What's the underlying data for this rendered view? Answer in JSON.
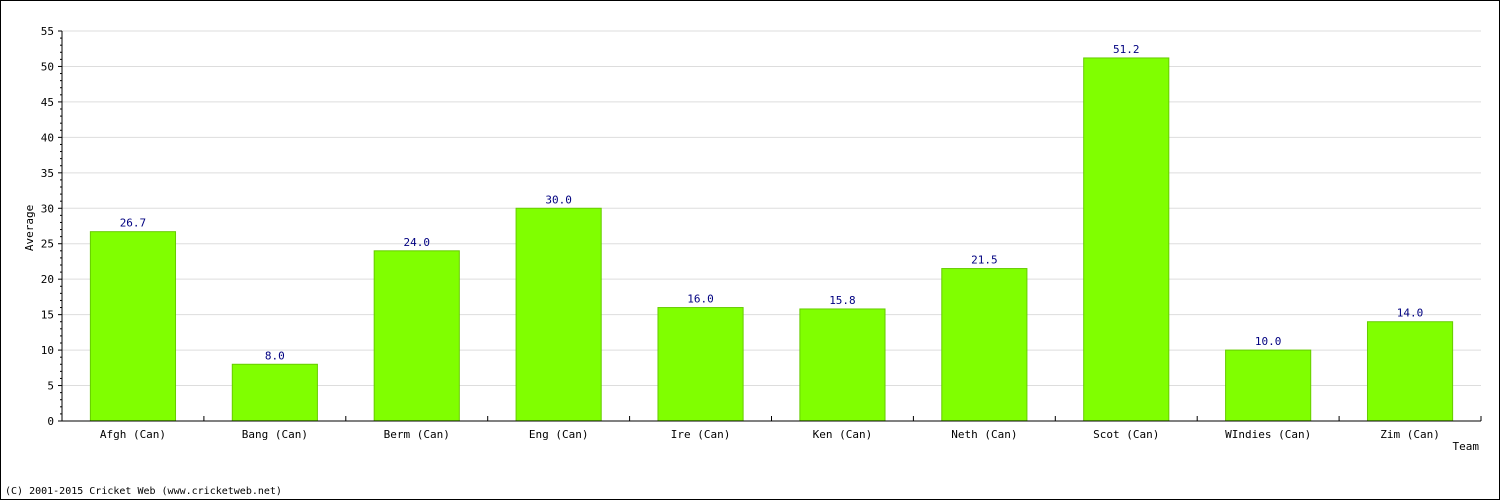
{
  "chart_data": {
    "type": "bar",
    "categories": [
      "Afgh (Can)",
      "Bang (Can)",
      "Berm (Can)",
      "Eng (Can)",
      "Ire (Can)",
      "Ken (Can)",
      "Neth (Can)",
      "Scot (Can)",
      "WIndies (Can)",
      "Zim (Can)"
    ],
    "values": [
      26.7,
      8.0,
      24.0,
      30.0,
      16.0,
      15.8,
      21.5,
      51.2,
      10.0,
      14.0
    ],
    "value_labels": [
      "26.7",
      "8.0",
      "24.0",
      "30.0",
      "16.0",
      "15.8",
      "21.5",
      "51.2",
      "10.0",
      "14.0"
    ],
    "xlabel": "Team",
    "ylabel": "Average",
    "ylim": [
      0,
      55
    ],
    "yticks": [
      0,
      5,
      10,
      15,
      20,
      25,
      30,
      35,
      40,
      45,
      50,
      55
    ],
    "grid": true,
    "colors": {
      "bar": "#80ff00",
      "bar_edge": "#66cc00",
      "value_label": "#000080",
      "grid": "#dddddd",
      "axis": "#000000"
    }
  },
  "footer": {
    "copyright": "(C) 2001-2015 Cricket Web (www.cricketweb.net)"
  }
}
